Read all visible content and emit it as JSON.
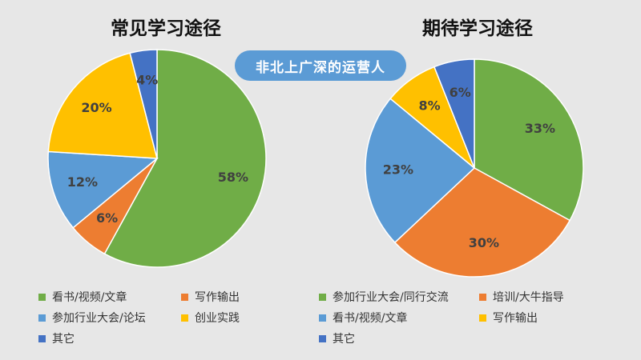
{
  "badge": "非北上广深的运营人",
  "colors": {
    "green": "#70ad47",
    "orange": "#ed7d31",
    "blue": "#5b9bd5",
    "yellow": "#ffc000",
    "darkblue": "#4472c4"
  },
  "chart_data": [
    {
      "type": "pie",
      "title": "常见学习途径",
      "slices": [
        {
          "label": "看书/视频/文章",
          "value": 58,
          "display": "58%",
          "color": "#70ad47"
        },
        {
          "label": "写作输出",
          "value": 6,
          "display": "6%",
          "color": "#ed7d31"
        },
        {
          "label": "参加行业大会/论坛",
          "value": 12,
          "display": "12%",
          "color": "#5b9bd5"
        },
        {
          "label": "创业实践",
          "value": 20,
          "display": "20%",
          "color": "#ffc000"
        },
        {
          "label": "其它",
          "value": 4,
          "display": "4%",
          "color": "#4472c4"
        }
      ],
      "legend": [
        "看书/视频/文章",
        "写作输出",
        "参加行业大会/论坛",
        "创业实践",
        "其它"
      ]
    },
    {
      "type": "pie",
      "title": "期待学习途径",
      "slices": [
        {
          "label": "参加行业大会/同行交流",
          "value": 33,
          "display": "33%",
          "color": "#70ad47"
        },
        {
          "label": "培训/大牛指导",
          "value": 30,
          "display": "30%",
          "color": "#ed7d31"
        },
        {
          "label": "看书/视频/文章",
          "value": 23,
          "display": "23%",
          "color": "#5b9bd5"
        },
        {
          "label": "写作输出",
          "value": 8,
          "display": "8%",
          "color": "#ffc000"
        },
        {
          "label": "其它",
          "value": 6,
          "display": "6%",
          "color": "#4472c4"
        }
      ],
      "legend": [
        "参加行业大会/同行交流",
        "培训/大牛指导",
        "看书/视频/文章",
        "写作输出",
        "其它"
      ]
    }
  ]
}
